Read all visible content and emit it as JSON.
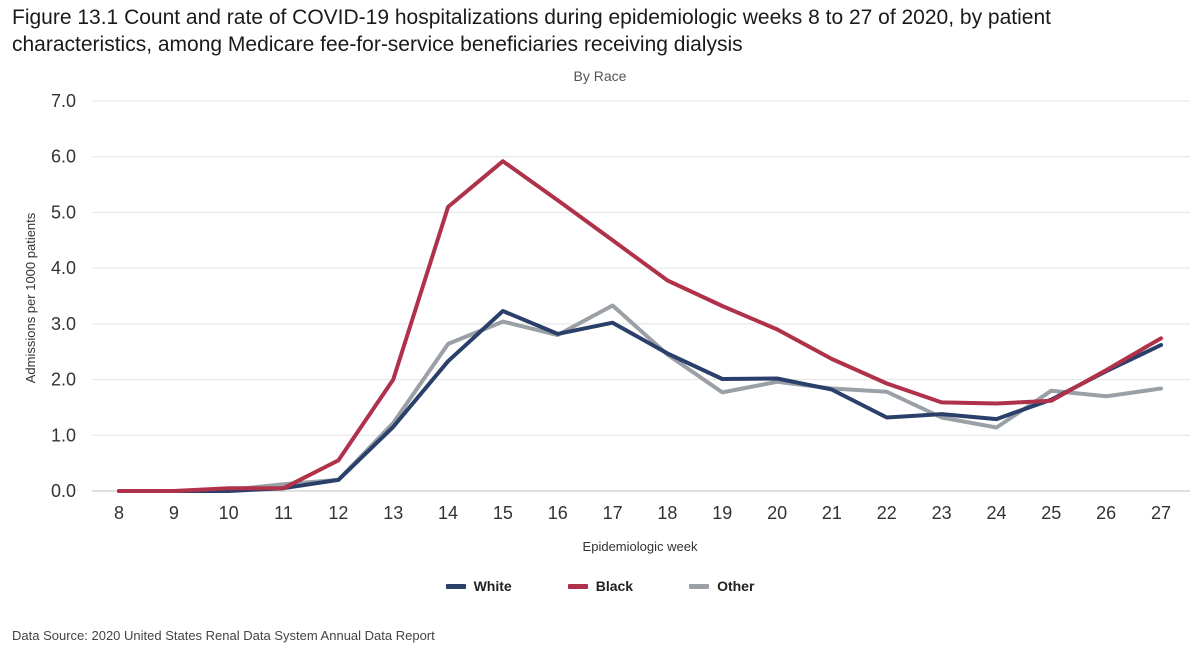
{
  "title": "Figure 13.1 Count and rate of COVID-19 hospitalizations during epidemiologic weeks 8 to 27 of 2020, by patient characteristics, among Medicare fee-for-service beneficiaries receiving dialysis",
  "source": "Data Source: 2020 United States Renal Data System Annual Data Report",
  "chart_data": {
    "type": "line",
    "title": "By Race",
    "xlabel": "Epidemiologic week",
    "ylabel": "Admissions per 1000 patients",
    "ylim": [
      0,
      7
    ],
    "yticks": [
      "0.0",
      "1.0",
      "2.0",
      "3.0",
      "4.0",
      "5.0",
      "6.0",
      "7.0"
    ],
    "x": [
      8,
      9,
      10,
      11,
      12,
      13,
      14,
      15,
      16,
      17,
      18,
      19,
      20,
      21,
      22,
      23,
      24,
      25,
      26,
      27
    ],
    "grid": true,
    "legend_position": "bottom",
    "series": [
      {
        "name": "White",
        "color": "#2b3f6b",
        "values": [
          0.0,
          0.0,
          0.0,
          0.05,
          0.2,
          1.15,
          2.33,
          3.23,
          2.82,
          3.02,
          2.47,
          2.01,
          2.02,
          1.82,
          1.32,
          1.38,
          1.29,
          1.64,
          2.15,
          2.62
        ]
      },
      {
        "name": "Black",
        "color": "#b0324a",
        "values": [
          0.0,
          0.0,
          0.05,
          0.05,
          0.55,
          2.0,
          5.1,
          5.92,
          5.22,
          4.5,
          3.78,
          3.32,
          2.9,
          2.37,
          1.93,
          1.59,
          1.57,
          1.62,
          2.17,
          2.74
        ]
      },
      {
        "name": "Other",
        "color": "#9aa0a6",
        "values": [
          0.0,
          0.0,
          0.02,
          0.12,
          0.2,
          1.22,
          2.64,
          3.04,
          2.8,
          3.33,
          2.45,
          1.77,
          1.96,
          1.84,
          1.78,
          1.32,
          1.14,
          1.8,
          1.7,
          1.84
        ]
      }
    ]
  }
}
